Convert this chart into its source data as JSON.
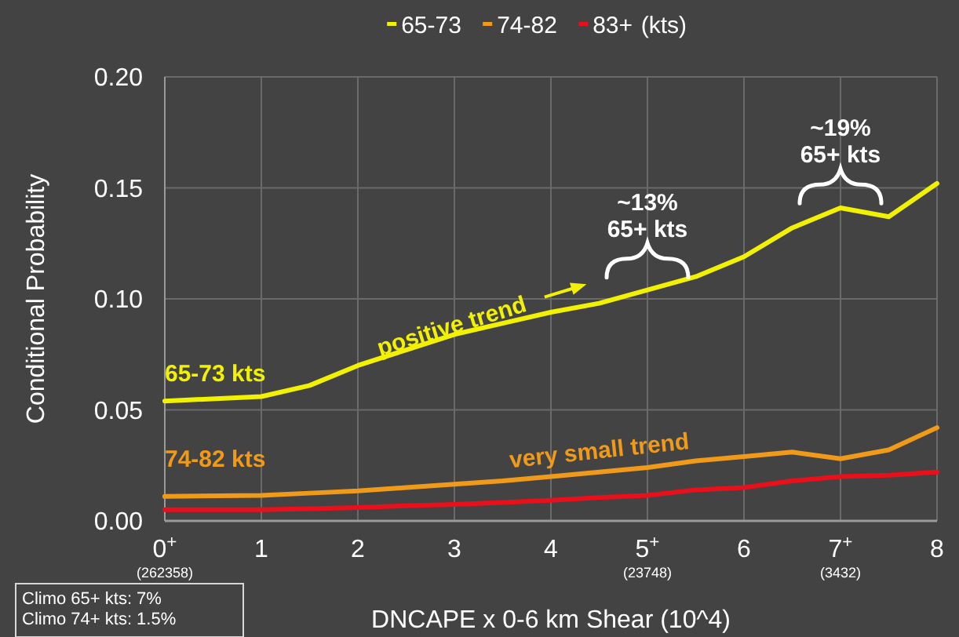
{
  "chart_data": {
    "type": "line",
    "xlabel": "DNCAPE x 0-6 km Shear (10^4)",
    "ylabel": "Conditional Probability",
    "legend_title": "(kts)",
    "legend": "top",
    "grid": true,
    "line_style": "solid",
    "marker": "none",
    "x": [
      0,
      1,
      1.5,
      2,
      2.5,
      3,
      3.5,
      4,
      4.5,
      5,
      5.5,
      6,
      6.5,
      7,
      7.5,
      8
    ],
    "series": [
      {
        "name": "65-73",
        "color": "#f2f200",
        "values": [
          0.054,
          0.056,
          0.061,
          0.07,
          0.077,
          0.084,
          0.089,
          0.094,
          0.098,
          0.104,
          0.11,
          0.119,
          0.132,
          0.141,
          0.137,
          0.152
        ]
      },
      {
        "name": "74-82",
        "color": "#f09a1a",
        "values": [
          0.011,
          0.0115,
          0.0125,
          0.0135,
          0.015,
          0.0165,
          0.018,
          0.02,
          0.022,
          0.024,
          0.027,
          0.029,
          0.031,
          0.028,
          0.032,
          0.042
        ]
      },
      {
        "name": "83+",
        "color": "#e8101a",
        "values": [
          0.005,
          0.005,
          0.0055,
          0.006,
          0.0068,
          0.0074,
          0.0083,
          0.0093,
          0.0105,
          0.0115,
          0.014,
          0.015,
          0.018,
          0.02,
          0.0206,
          0.022
        ]
      }
    ],
    "xlim": [
      0,
      8
    ],
    "ylim": [
      0,
      0.2
    ],
    "xticks": [
      {
        "value": 0,
        "label": "0$^{+}$\n(262358)"
      },
      1,
      2,
      3,
      4,
      {
        "value": 5,
        "label": "5$^{+}$\n(23748)"
      },
      6,
      {
        "value": 7,
        "label": "7$^{+}$\n(3432)"
      },
      8
    ],
    "yticks": [
      {
        "value": 0,
        "label": "0.00"
      },
      {
        "value": 0.05,
        "label": "0.05"
      },
      {
        "value": 0.1,
        "label": "0.10"
      },
      {
        "value": 0.15,
        "label": "0.15"
      },
      {
        "value": 0.2,
        "label": "0.20"
      }
    ],
    "annotations": [
      {
        "text": "65-73 kts",
        "x": 0,
        "y": 0.054
      },
      {
        "text": "positive trend",
        "x": 2.97,
        "y": 0.088
      },
      {
        "text": "74-82 kts",
        "x": 0,
        "y": 0.011
      },
      {
        "text": "very small trend",
        "x": 4.5,
        "y": 0.022
      },
      {
        "text": "~13%\n65+ kts",
        "x": 5,
        "y": 0.104
      },
      {
        "text": "~19%\n65+ kts",
        "x": 7,
        "y": 0.143
      },
      "Climo 65+ kts: 7%",
      "Climo 74+ kts: 1.5%"
    ]
  }
}
